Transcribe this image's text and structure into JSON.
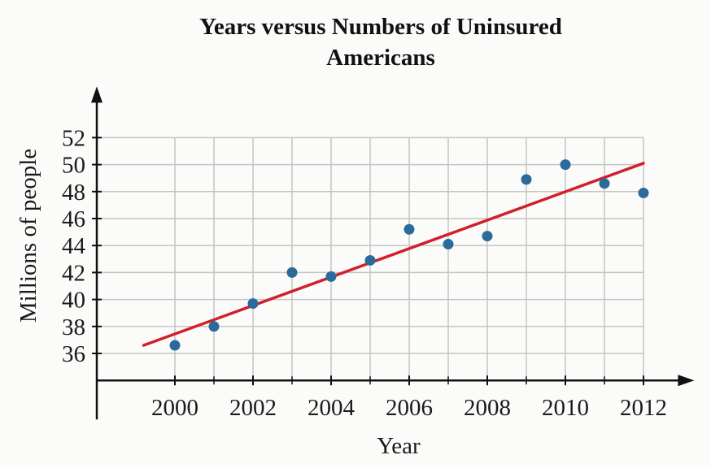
{
  "chart_data": {
    "type": "scatter",
    "title": [
      "Years versus Numbers of Uninsured",
      "Americans"
    ],
    "xlabel": "Year",
    "ylabel": "Millions of people",
    "x_ticks": [
      2000,
      2002,
      2004,
      2006,
      2008,
      2010,
      2012
    ],
    "y_ticks": [
      36,
      38,
      40,
      42,
      44,
      46,
      48,
      50,
      52
    ],
    "xlim": [
      1998,
      2013.3
    ],
    "ylim": [
      34,
      55.8
    ],
    "grid": true,
    "points": [
      {
        "x": 2000,
        "y": 36.6
      },
      {
        "x": 2001,
        "y": 38.0
      },
      {
        "x": 2002,
        "y": 39.7
      },
      {
        "x": 2003,
        "y": 42.0
      },
      {
        "x": 2004,
        "y": 41.7
      },
      {
        "x": 2005,
        "y": 42.9
      },
      {
        "x": 2006,
        "y": 45.2
      },
      {
        "x": 2007,
        "y": 44.1
      },
      {
        "x": 2008,
        "y": 44.7
      },
      {
        "x": 2009,
        "y": 48.9
      },
      {
        "x": 2010,
        "y": 50.0
      },
      {
        "x": 2011,
        "y": 48.6
      },
      {
        "x": 2012,
        "y": 47.9
      }
    ],
    "trend_line": {
      "x": [
        1999.2,
        2012
      ],
      "y": [
        36.6,
        50.1
      ]
    },
    "colors": {
      "points": "#2a6b9c",
      "trend_line": "#d0202e",
      "grid": "#c4c4c4",
      "axis": "#111111"
    }
  }
}
